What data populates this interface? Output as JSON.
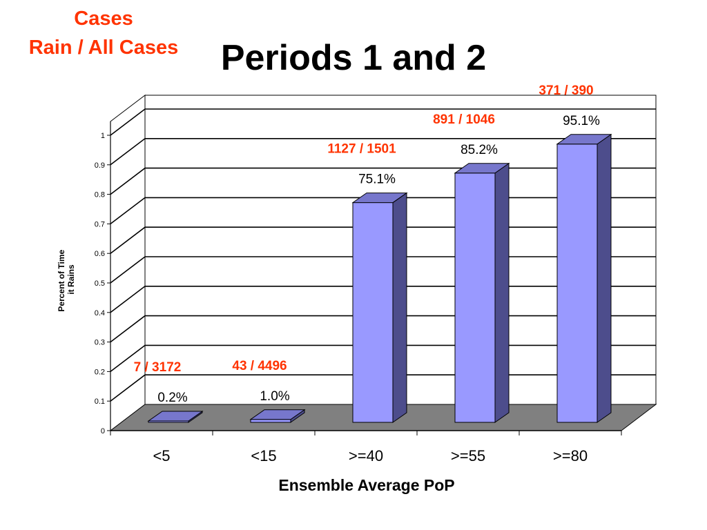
{
  "header": {
    "corner_line1": "Cases",
    "corner_line2": "Rain / All Cases",
    "title": "Periods 1 and 2"
  },
  "colors": {
    "bar_front": "#9999ff",
    "bar_side": "#4d4d8c",
    "bar_top": "#7777cc",
    "floor": "#808080",
    "case_label": "#ff3300"
  },
  "chart_data": {
    "type": "bar",
    "title": "Periods 1 and 2",
    "xlabel": "Ensemble Average PoP",
    "ylabel_lines": [
      "Percent of Time",
      "it Rains"
    ],
    "categories": [
      "<5",
      "<15",
      ">=40",
      ">=55",
      ">=80"
    ],
    "values": [
      0.002,
      0.01,
      0.751,
      0.852,
      0.951
    ],
    "value_labels": [
      "0.2%",
      "1.0%",
      "75.1%",
      "85.2%",
      "95.1%"
    ],
    "case_labels": [
      "7 / 3172",
      "43 / 4496",
      "1127 / 1501",
      "891 / 1046",
      "371 / 390"
    ],
    "yticks": [
      "0",
      "0.1",
      "0.2",
      "0.3",
      "0.4",
      "0.5",
      "0.6",
      "0.7",
      "0.8",
      "0.9",
      "1"
    ],
    "ylim": [
      0,
      1
    ],
    "grid": true,
    "legend": "none",
    "style": "3d"
  }
}
